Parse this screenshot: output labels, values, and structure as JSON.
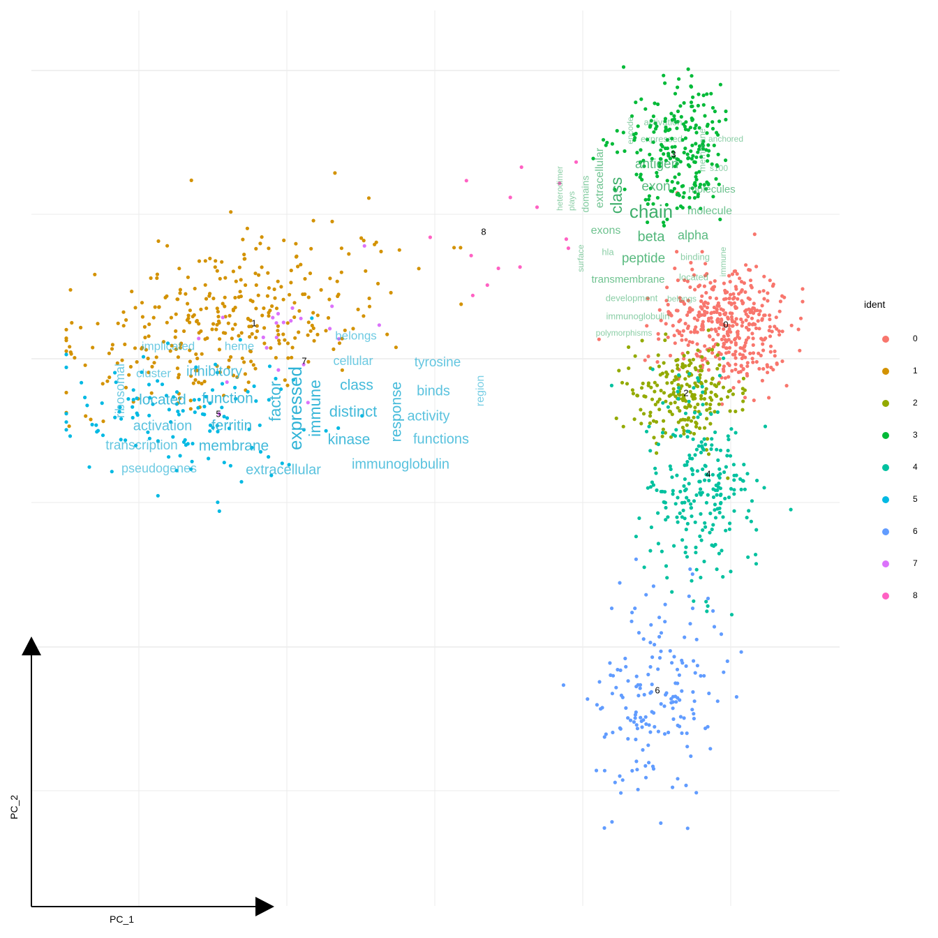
{
  "chart_data": {
    "type": "scatter",
    "xlabel": "PC_1",
    "ylabel": "PC_2",
    "grid": true,
    "legend_placement": "right",
    "legend": {
      "title": "ident",
      "entries": [
        {
          "label": "0",
          "color": "#F8766D"
        },
        {
          "label": "1",
          "color": "#D39200"
        },
        {
          "label": "2",
          "color": "#93AA00"
        },
        {
          "label": "3",
          "color": "#00BA38"
        },
        {
          "label": "4",
          "color": "#00C19F"
        },
        {
          "label": "5",
          "color": "#00B9E3"
        },
        {
          "label": "6",
          "color": "#619CFF"
        },
        {
          "label": "7",
          "color": "#DB72FB"
        },
        {
          "label": "8",
          "color": "#FF61C3"
        }
      ]
    },
    "series": [
      {
        "name": "0",
        "color": "#F8766D",
        "center": [
          1040,
          465
        ],
        "spread": [
          45,
          45
        ],
        "count": 420,
        "cluster_label": "0"
      },
      {
        "name": "1",
        "color": "#D39200",
        "center": [
          330,
          455
        ],
        "spread": [
          110,
          55
        ],
        "count": 330,
        "cluster_label": "1"
      },
      {
        "name": "2",
        "color": "#93AA00",
        "center": [
          980,
          565
        ],
        "spread": [
          38,
          35
        ],
        "count": 220,
        "cluster_label": "2"
      },
      {
        "name": "3",
        "color": "#00BA38",
        "center": [
          975,
          215
        ],
        "spread": [
          40,
          50
        ],
        "count": 230,
        "cluster_label": "3"
      },
      {
        "name": "4",
        "color": "#00C19F",
        "center": [
          1005,
          700
        ],
        "spread": [
          40,
          70
        ],
        "count": 240,
        "cluster_label": "4"
      },
      {
        "name": "5",
        "color": "#00B9E3",
        "center": [
          260,
          600
        ],
        "spread": [
          90,
          50
        ],
        "count": 120,
        "cluster_label": "5"
      },
      {
        "name": "6",
        "color": "#619CFF",
        "center": [
          940,
          1000
        ],
        "spread": [
          45,
          75
        ],
        "count": 170,
        "cluster_label": "6"
      },
      {
        "name": "7",
        "color": "#DB72FB",
        "center": [
          420,
          500
        ],
        "spread": [
          70,
          60
        ],
        "count": 22,
        "cluster_label": "7"
      },
      {
        "name": "8",
        "color": "#FF61C3",
        "center": [
          730,
          320
        ],
        "spread": [
          55,
          60
        ],
        "count": 14,
        "cluster_label": "8"
      }
    ],
    "word_clouds": [
      {
        "cluster": "3",
        "color": "#3DAE6A",
        "words": [
          {
            "text": "encode",
            "size": 12,
            "pos": [
              904,
              187
            ],
            "rotate": -90,
            "opacity": 0.6
          },
          {
            "text": "activation",
            "size": 13,
            "pos": [
              950,
              176
            ],
            "rotate": 0,
            "opacity": 0.6
          },
          {
            "text": "expressed",
            "size": 13,
            "pos": [
              948,
              200
            ],
            "rotate": 0,
            "opacity": 0.6
          },
          {
            "text": "anchored",
            "size": 12,
            "pos": [
              1040,
              200
            ],
            "rotate": 0,
            "opacity": 0.6
          },
          {
            "text": "membrane",
            "size": 13,
            "pos": [
              1007,
              215
            ],
            "rotate": -90,
            "opacity": 0.6
          },
          {
            "text": "antigen",
            "size": 19,
            "pos": [
              941,
              236
            ],
            "rotate": 0,
            "opacity": 0.85
          },
          {
            "text": "s100",
            "size": 12,
            "pos": [
              1030,
              242
            ],
            "rotate": 0,
            "opacity": 0.6
          },
          {
            "text": "heterodimer",
            "size": 12,
            "pos": [
              803,
              270
            ],
            "rotate": -90,
            "opacity": 0.6
          },
          {
            "text": "plays",
            "size": 12,
            "pos": [
              820,
              288
            ],
            "rotate": -90,
            "opacity": 0.6
          },
          {
            "text": "domains",
            "size": 14,
            "pos": [
              840,
              278
            ],
            "rotate": -90,
            "opacity": 0.65
          },
          {
            "text": "extracellular",
            "size": 16,
            "pos": [
              860,
              255
            ],
            "rotate": -90,
            "opacity": 0.75
          },
          {
            "text": "class",
            "size": 23,
            "pos": [
              885,
              280
            ],
            "rotate": -90,
            "opacity": 1.0
          },
          {
            "text": "exon",
            "size": 19,
            "pos": [
              940,
              268
            ],
            "rotate": 0,
            "opacity": 0.85
          },
          {
            "text": "molecules",
            "size": 15,
            "pos": [
              1020,
              272
            ],
            "rotate": 0,
            "opacity": 0.75
          },
          {
            "text": "chain",
            "size": 26,
            "pos": [
              933,
              305
            ],
            "rotate": 0,
            "opacity": 1.0
          },
          {
            "text": "molecule",
            "size": 16,
            "pos": [
              1017,
              303
            ],
            "rotate": 0,
            "opacity": 0.75
          },
          {
            "text": "exons",
            "size": 16,
            "pos": [
              868,
              331
            ],
            "rotate": 0,
            "opacity": 0.75
          },
          {
            "text": "beta",
            "size": 20,
            "pos": [
              933,
              340
            ],
            "rotate": 0,
            "opacity": 0.9
          },
          {
            "text": "alpha",
            "size": 18,
            "pos": [
              993,
              338
            ],
            "rotate": 0,
            "opacity": 0.85
          },
          {
            "text": "hla",
            "size": 13,
            "pos": [
              871,
              362
            ],
            "rotate": 0,
            "opacity": 0.6
          },
          {
            "text": "surface",
            "size": 12,
            "pos": [
              833,
              370
            ],
            "rotate": -90,
            "opacity": 0.6
          },
          {
            "text": "peptide",
            "size": 19,
            "pos": [
              922,
              371
            ],
            "rotate": 0,
            "opacity": 0.85
          },
          {
            "text": "binding",
            "size": 13,
            "pos": [
              996,
              369
            ],
            "rotate": 0,
            "opacity": 0.6
          },
          {
            "text": "immune",
            "size": 12,
            "pos": [
              1037,
              375
            ],
            "rotate": -90,
            "opacity": 0.6
          },
          {
            "text": "transmembrane",
            "size": 15,
            "pos": [
              900,
              401
            ],
            "rotate": 0,
            "opacity": 0.75
          },
          {
            "text": "located",
            "size": 13,
            "pos": [
              994,
              398
            ],
            "rotate": 0,
            "opacity": 0.6
          },
          {
            "text": "development",
            "size": 13,
            "pos": [
              905,
              428
            ],
            "rotate": 0,
            "opacity": 0.6
          },
          {
            "text": "belongs",
            "size": 12,
            "pos": [
              977,
              429
            ],
            "rotate": 0,
            "opacity": 0.6
          },
          {
            "text": "immunoglobulin",
            "size": 13,
            "pos": [
              914,
              454
            ],
            "rotate": 0,
            "opacity": 0.6
          },
          {
            "text": "polymorphisms",
            "size": 12,
            "pos": [
              894,
              478
            ],
            "rotate": 0,
            "opacity": 0.6
          }
        ]
      },
      {
        "cluster": "5",
        "color": "#2FB3D6",
        "words": [
          {
            "text": "implicated",
            "size": 17,
            "pos": [
              241,
              497
            ],
            "rotate": 0,
            "opacity": 0.7
          },
          {
            "text": "heme",
            "size": 17,
            "pos": [
              343,
              497
            ],
            "rotate": 0,
            "opacity": 0.7
          },
          {
            "text": "belongs",
            "size": 17,
            "pos": [
              510,
              482
            ],
            "rotate": 0,
            "opacity": 0.7
          },
          {
            "text": "cellular",
            "size": 18,
            "pos": [
              506,
              518
            ],
            "rotate": 0,
            "opacity": 0.7
          },
          {
            "text": "tyrosine",
            "size": 19,
            "pos": [
              627,
              520
            ],
            "rotate": 0,
            "opacity": 0.75
          },
          {
            "text": "ribosomal",
            "size": 18,
            "pos": [
              173,
              560
            ],
            "rotate": -90,
            "opacity": 0.7
          },
          {
            "text": "cluster",
            "size": 17,
            "pos": [
              220,
              536
            ],
            "rotate": 0,
            "opacity": 0.7
          },
          {
            "text": "inhibitory",
            "size": 20,
            "pos": [
              307,
              533
            ],
            "rotate": 0,
            "opacity": 0.85
          },
          {
            "text": "class",
            "size": 21,
            "pos": [
              511,
              553
            ],
            "rotate": 0,
            "opacity": 0.9
          },
          {
            "text": "binds",
            "size": 20,
            "pos": [
              621,
              561
            ],
            "rotate": 0,
            "opacity": 0.8
          },
          {
            "text": "region",
            "size": 16,
            "pos": [
              689,
              560
            ],
            "rotate": -90,
            "opacity": 0.65
          },
          {
            "text": "located",
            "size": 21,
            "pos": [
              233,
              574
            ],
            "rotate": 0,
            "opacity": 0.9
          },
          {
            "text": "function",
            "size": 21,
            "pos": [
              326,
              572
            ],
            "rotate": 0,
            "opacity": 0.9
          },
          {
            "text": "factor",
            "size": 23,
            "pos": [
              396,
              575
            ],
            "rotate": -90,
            "opacity": 0.95
          },
          {
            "text": "expressed",
            "size": 26,
            "pos": [
              425,
              585
            ],
            "rotate": -90,
            "opacity": 1.0
          },
          {
            "text": "immune",
            "size": 23,
            "pos": [
              453,
              585
            ],
            "rotate": -90,
            "opacity": 0.95
          },
          {
            "text": "distinct",
            "size": 22,
            "pos": [
              506,
              591
            ],
            "rotate": 0,
            "opacity": 0.9
          },
          {
            "text": "response",
            "size": 21,
            "pos": [
              569,
              590
            ],
            "rotate": -90,
            "opacity": 0.9
          },
          {
            "text": "activity",
            "size": 20,
            "pos": [
              614,
              597
            ],
            "rotate": 0,
            "opacity": 0.8
          },
          {
            "text": "activation",
            "size": 20,
            "pos": [
              233,
              611
            ],
            "rotate": 0,
            "opacity": 0.8
          },
          {
            "text": "ferritin",
            "size": 21,
            "pos": [
              332,
              611
            ],
            "rotate": 0,
            "opacity": 0.9
          },
          {
            "text": "kinase",
            "size": 21,
            "pos": [
              500,
              631
            ],
            "rotate": 0,
            "opacity": 0.9
          },
          {
            "text": "functions",
            "size": 20,
            "pos": [
              632,
              630
            ],
            "rotate": 0,
            "opacity": 0.8
          },
          {
            "text": "transcription",
            "size": 19,
            "pos": [
              203,
              639
            ],
            "rotate": 0,
            "opacity": 0.75
          },
          {
            "text": "membrane",
            "size": 21,
            "pos": [
              335,
              640
            ],
            "rotate": 0,
            "opacity": 0.9
          },
          {
            "text": "immunoglobulin",
            "size": 20,
            "pos": [
              574,
              666
            ],
            "rotate": 0,
            "opacity": 0.8
          },
          {
            "text": "pseudogenes",
            "size": 18,
            "pos": [
              228,
              672
            ],
            "rotate": 0,
            "opacity": 0.7
          },
          {
            "text": "extracellular",
            "size": 20,
            "pos": [
              406,
              674
            ],
            "rotate": 0,
            "opacity": 0.8
          }
        ]
      }
    ],
    "cluster_labels": [
      {
        "text": "0",
        "pos": [
          1040,
          466
        ]
      },
      {
        "text": "1",
        "pos": [
          364,
          464
        ]
      },
      {
        "text": "2",
        "pos": [
          983,
          564
        ]
      },
      {
        "text": "3",
        "pos": [
          965,
          222
        ]
      },
      {
        "text": "4",
        "pos": [
          1015,
          680
        ]
      },
      {
        "text": "5",
        "pos": [
          313,
          594
        ]
      },
      {
        "text": "6",
        "pos": [
          942,
          990
        ]
      },
      {
        "text": "7",
        "pos": [
          436,
          518
        ]
      },
      {
        "text": "8",
        "pos": [
          693,
          333
        ]
      }
    ]
  }
}
